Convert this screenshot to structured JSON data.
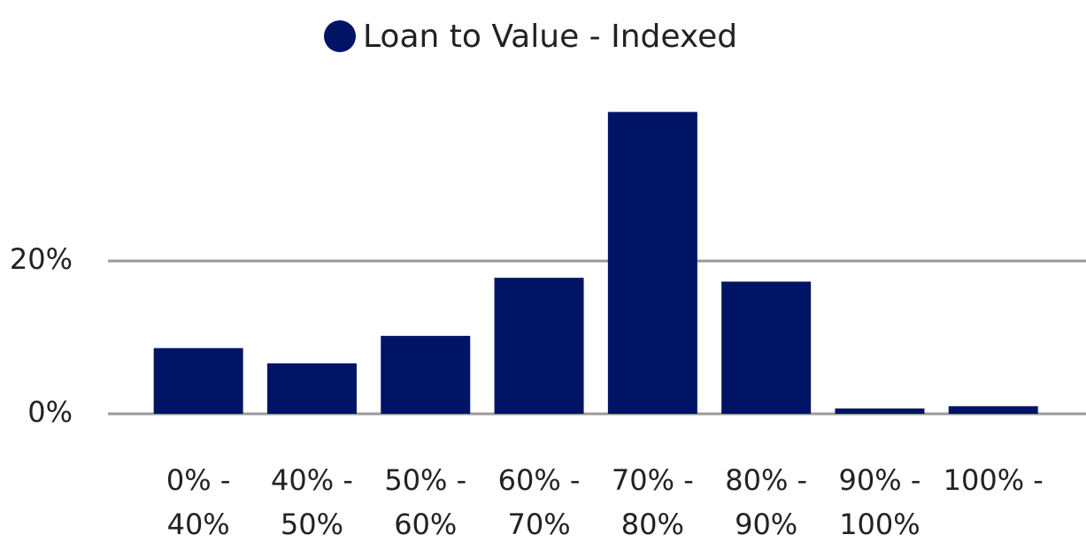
{
  "chart_data": {
    "type": "bar",
    "legend": "Loan to Value - Indexed",
    "categories": [
      "0% - 40%",
      "40% - 50%",
      "50% - 60%",
      "60% - 70%",
      "70% - 80%",
      "80% - 90%",
      "90% - 100%",
      "100% -"
    ],
    "series": [
      {
        "name": "Loan to Value - Indexed",
        "color": "#001466",
        "values": [
          8.6,
          6.6,
          10.2,
          17.8,
          39.5,
          17.3,
          0.7,
          1.0
        ]
      }
    ],
    "ylim": [
      0,
      42
    ],
    "yticks": [
      {
        "value": 0,
        "label": "0%"
      },
      {
        "value": 20,
        "label": "20%"
      }
    ],
    "grid": true,
    "legend_position": "top"
  }
}
